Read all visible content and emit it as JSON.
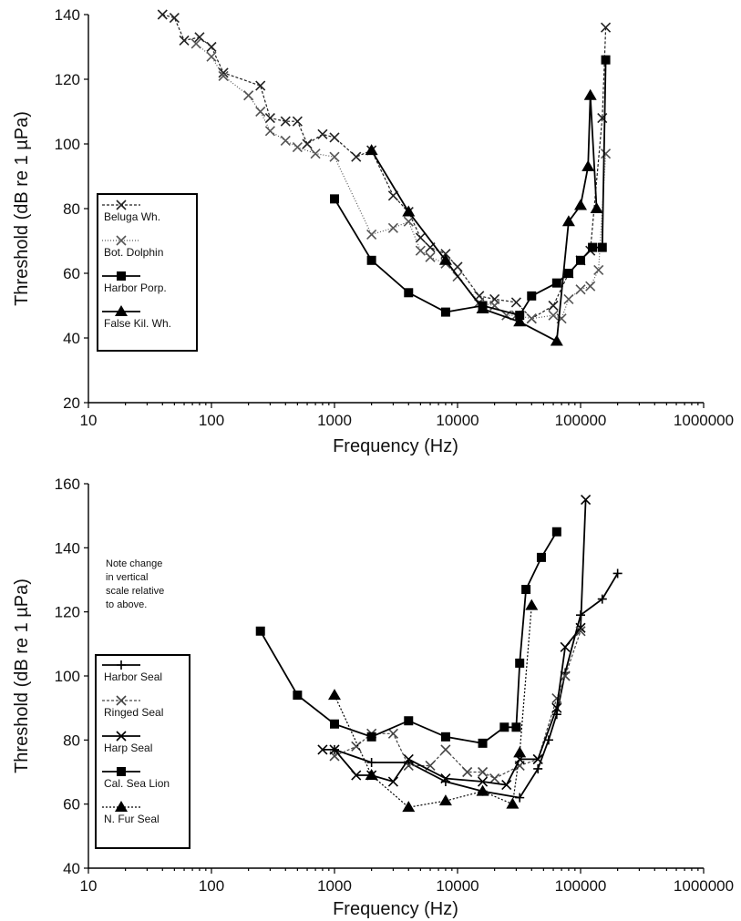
{
  "chart_data": [
    {
      "type": "line",
      "xlabel": "Frequency (Hz)",
      "ylabel": "Threshold (dB re 1 µPa)",
      "xscale": "log",
      "xlim": [
        10,
        1000000
      ],
      "ylim": [
        20,
        140
      ],
      "x_ticks": [
        "10",
        "100",
        "1000",
        "10000",
        "100000",
        "1000000"
      ],
      "y_ticks": [
        "20",
        "40",
        "60",
        "80",
        "100",
        "120",
        "140"
      ],
      "legend_position": "left",
      "series": [
        {
          "name": "Beluga Wh.",
          "marker": "x",
          "dash": "3,2",
          "color": "#222222",
          "points": [
            [
              40,
              140
            ],
            [
              50,
              139
            ],
            [
              60,
              132
            ],
            [
              80,
              133
            ],
            [
              100,
              130
            ],
            [
              125,
              122
            ],
            [
              250,
              118
            ],
            [
              300,
              108
            ],
            [
              400,
              107
            ],
            [
              500,
              107
            ],
            [
              600,
              100
            ],
            [
              800,
              103
            ],
            [
              1000,
              102
            ],
            [
              1500,
              96
            ],
            [
              2000,
              98
            ],
            [
              3000,
              84
            ],
            [
              4000,
              79
            ],
            [
              5000,
              71
            ],
            [
              6000,
              68
            ],
            [
              8000,
              66
            ],
            [
              10000,
              62
            ],
            [
              15000,
              53
            ],
            [
              20000,
              52
            ],
            [
              30000,
              51
            ],
            [
              40000,
              46
            ],
            [
              60000,
              50
            ],
            [
              80000,
              60
            ],
            [
              100000,
              64
            ],
            [
              120000,
              67
            ],
            [
              150000,
              108
            ],
            [
              160000,
              136
            ]
          ]
        },
        {
          "name": "Bot. Dolphin",
          "marker": "x",
          "dash": "1,2",
          "color": "#555555",
          "points": [
            [
              75,
              131
            ],
            [
              100,
              127
            ],
            [
              125,
              121
            ],
            [
              200,
              115
            ],
            [
              250,
              110
            ],
            [
              300,
              104
            ],
            [
              400,
              101
            ],
            [
              500,
              99
            ],
            [
              700,
              97
            ],
            [
              1000,
              96
            ],
            [
              2000,
              72
            ],
            [
              3000,
              74
            ],
            [
              4000,
              76
            ],
            [
              5000,
              67
            ],
            [
              6000,
              65
            ],
            [
              8000,
              63
            ],
            [
              10000,
              59
            ],
            [
              15000,
              51
            ],
            [
              20000,
              50
            ],
            [
              25000,
              47
            ],
            [
              30000,
              47
            ],
            [
              40000,
              46
            ],
            [
              60000,
              47
            ],
            [
              70000,
              46
            ],
            [
              80000,
              52
            ],
            [
              100000,
              55
            ],
            [
              120000,
              56
            ],
            [
              140000,
              61
            ],
            [
              160000,
              97
            ]
          ]
        },
        {
          "name": "Harbor Porp.",
          "marker": "square",
          "dash": "",
          "color": "#000000",
          "points": [
            [
              1000,
              83
            ],
            [
              2000,
              64
            ],
            [
              4000,
              54
            ],
            [
              8000,
              48
            ],
            [
              16000,
              50
            ],
            [
              32000,
              47
            ],
            [
              40000,
              53
            ],
            [
              64000,
              57
            ],
            [
              80000,
              60
            ],
            [
              100000,
              64
            ],
            [
              125000,
              68
            ],
            [
              150000,
              68
            ],
            [
              160000,
              126
            ]
          ]
        },
        {
          "name": "False Kil. Wh.",
          "marker": "triangle",
          "dash": "",
          "color": "#000000",
          "points": [
            [
              2000,
              98
            ],
            [
              4000,
              79
            ],
            [
              8000,
              64
            ],
            [
              16000,
              49
            ],
            [
              32000,
              45
            ],
            [
              64000,
              39
            ],
            [
              80000,
              76
            ],
            [
              100000,
              81
            ],
            [
              115000,
              93
            ],
            [
              120000,
              115
            ],
            [
              135000,
              80
            ]
          ]
        }
      ]
    },
    {
      "type": "line",
      "xlabel": "Frequency (Hz)",
      "ylabel": "Threshold (dB re 1 µPa)",
      "xscale": "log",
      "xlim": [
        10,
        1000000
      ],
      "ylim": [
        40,
        160
      ],
      "x_ticks": [
        "10",
        "100",
        "1000",
        "10000",
        "100000",
        "1000000"
      ],
      "y_ticks": [
        "40",
        "60",
        "80",
        "100",
        "120",
        "140",
        "160"
      ],
      "annotation": "Note change in vertical scale relative to above.",
      "legend_position": "left",
      "series": [
        {
          "name": "Harbor Seal",
          "marker": "plus",
          "dash": "",
          "color": "#000000",
          "points": [
            [
              1000,
              77
            ],
            [
              2000,
              73
            ],
            [
              4000,
              73
            ],
            [
              8000,
              67
            ],
            [
              16000,
              64
            ],
            [
              32000,
              62
            ],
            [
              45000,
              71
            ],
            [
              55000,
              80
            ],
            [
              64000,
              88
            ],
            [
              75000,
              101
            ],
            [
              100000,
              119
            ],
            [
              150000,
              124
            ],
            [
              200000,
              132
            ]
          ]
        },
        {
          "name": "Ringed Seal",
          "marker": "x",
          "dash": "3,2",
          "color": "#444444",
          "points": [
            [
              1000,
              75
            ],
            [
              1500,
              78
            ],
            [
              2000,
              82
            ],
            [
              3000,
              82
            ],
            [
              4000,
              72
            ],
            [
              6000,
              72
            ],
            [
              8000,
              77
            ],
            [
              12000,
              70
            ],
            [
              16000,
              70
            ],
            [
              20000,
              68
            ],
            [
              32000,
              72
            ],
            [
              45000,
              74
            ],
            [
              64000,
              93
            ],
            [
              75000,
              100
            ],
            [
              100000,
              114
            ]
          ]
        },
        {
          "name": "Harp Seal",
          "marker": "x",
          "dash": "",
          "color": "#000000",
          "points": [
            [
              800,
              77
            ],
            [
              1000,
              77
            ],
            [
              1500,
              69
            ],
            [
              2000,
              69
            ],
            [
              3000,
              67
            ],
            [
              4000,
              74
            ],
            [
              8000,
              68
            ],
            [
              16000,
              67
            ],
            [
              25000,
              66
            ],
            [
              32000,
              74
            ],
            [
              45000,
              74
            ],
            [
              64000,
              90
            ],
            [
              75000,
              109
            ],
            [
              100000,
              115
            ],
            [
              110000,
              155
            ]
          ]
        },
        {
          "name": "Cal. Sea Lion",
          "marker": "square",
          "dash": "",
          "color": "#000000",
          "points": [
            [
              250,
              114
            ],
            [
              500,
              94
            ],
            [
              1000,
              85
            ],
            [
              2000,
              81
            ],
            [
              4000,
              86
            ],
            [
              8000,
              81
            ],
            [
              16000,
              79
            ],
            [
              24000,
              84
            ],
            [
              30000,
              84
            ],
            [
              32000,
              104
            ],
            [
              36000,
              127
            ],
            [
              48000,
              137
            ],
            [
              64000,
              145
            ]
          ]
        },
        {
          "name": "N. Fur Seal",
          "marker": "triangle",
          "dash": "2,2",
          "color": "#000000",
          "points": [
            [
              1000,
              94
            ],
            [
              2000,
              69
            ],
            [
              4000,
              59
            ],
            [
              8000,
              61
            ],
            [
              16000,
              64
            ],
            [
              28000,
              60
            ],
            [
              32000,
              76
            ],
            [
              40000,
              122
            ]
          ]
        }
      ]
    }
  ]
}
